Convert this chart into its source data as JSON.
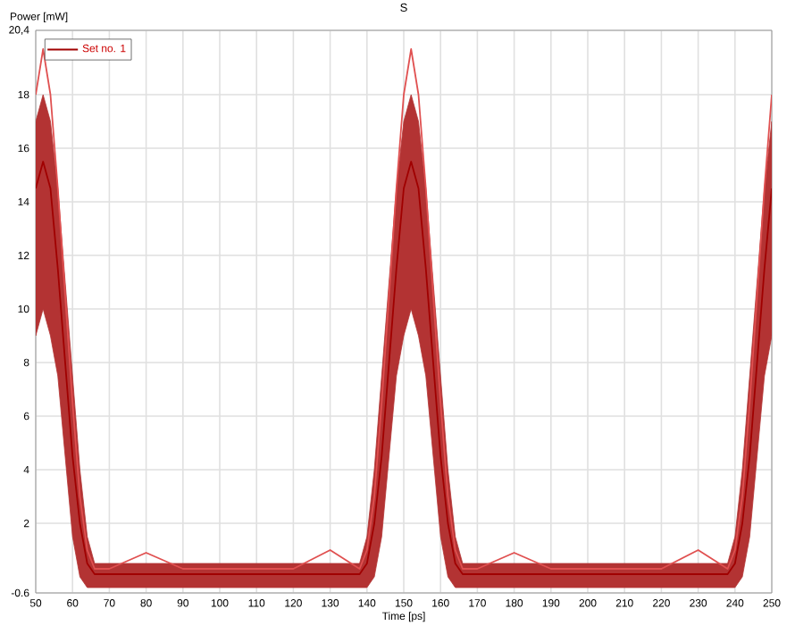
{
  "chart_data": {
    "type": "line",
    "title": "S",
    "xlabel": "Time [ps]",
    "ylabel": "Power [mW]",
    "x": [
      50,
      52,
      54,
      56,
      58,
      60,
      62,
      64,
      66,
      70,
      80,
      90,
      100,
      110,
      120,
      130,
      138,
      140,
      142,
      144,
      146,
      148,
      150,
      152,
      154,
      156,
      158,
      160,
      162,
      164,
      166,
      170,
      180,
      190,
      200,
      210,
      220,
      230,
      238,
      240,
      242,
      244,
      246,
      248,
      250
    ],
    "series": [
      {
        "name": "Set no. 1",
        "color": "#a00000",
        "values": [
          14.5,
          15.5,
          14.5,
          11.5,
          8,
          4.5,
          2,
          0.5,
          0.1,
          0.1,
          0.1,
          0.1,
          0.1,
          0.1,
          0.1,
          0.1,
          0.1,
          0.5,
          2,
          4.5,
          8,
          11.5,
          14.5,
          15.5,
          14.5,
          11.5,
          8,
          4.5,
          2,
          0.5,
          0.1,
          0.1,
          0.1,
          0.1,
          0.1,
          0.1,
          0.1,
          0.1,
          0.1,
          0.5,
          2,
          4.5,
          8,
          11.5,
          14.5
        ],
        "upper": [
          17,
          18,
          17,
          14.5,
          11,
          7.5,
          4,
          1.5,
          0.5,
          0.5,
          0.5,
          0.5,
          0.5,
          0.5,
          0.5,
          0.5,
          0.5,
          1.5,
          4,
          7.5,
          11,
          14.5,
          17,
          18,
          17,
          14.5,
          11,
          7.5,
          4,
          1.5,
          0.5,
          0.5,
          0.5,
          0.5,
          0.5,
          0.5,
          0.5,
          0.5,
          0.5,
          1.5,
          4,
          7.5,
          11,
          14.5,
          17
        ],
        "lower": [
          9,
          10,
          9,
          7.5,
          4.5,
          1.5,
          0,
          -0.4,
          -0.4,
          -0.4,
          -0.4,
          -0.4,
          -0.4,
          -0.4,
          -0.4,
          -0.4,
          -0.4,
          -0.4,
          0,
          1.5,
          4.5,
          7.5,
          9,
          10,
          9,
          7.5,
          4.5,
          1.5,
          0,
          -0.4,
          -0.4,
          -0.4,
          -0.4,
          -0.4,
          -0.4,
          -0.4,
          -0.4,
          -0.4,
          -0.4,
          -0.4,
          0,
          1.5,
          4.5,
          7.5,
          9
        ]
      },
      {
        "color": "#e05050",
        "values": [
          18,
          19.7,
          18,
          14.5,
          10.5,
          6.5,
          3,
          1,
          0.3,
          0.3,
          0.9,
          0.3,
          0.3,
          0.3,
          0.3,
          1.0,
          0.3,
          1,
          3,
          6.5,
          10.5,
          14.5,
          18,
          19.7,
          18,
          14.5,
          10.5,
          6.5,
          3,
          1,
          0.3,
          0.3,
          0.9,
          0.3,
          0.3,
          0.3,
          0.3,
          1.0,
          0.3,
          1,
          3,
          6.5,
          10.5,
          14.5,
          18
        ]
      }
    ],
    "xlim": [
      50,
      250
    ],
    "ylim": [
      -0.6,
      20.4
    ],
    "xticks": [
      50,
      60,
      70,
      80,
      90,
      100,
      110,
      120,
      130,
      140,
      150,
      160,
      170,
      180,
      190,
      200,
      210,
      220,
      230,
      240,
      250
    ],
    "yticks": [
      -0.6,
      2,
      4,
      6,
      8,
      10,
      12,
      14,
      16,
      18,
      {
        "value": 20.4,
        "label": "20,4"
      }
    ],
    "grid": true,
    "legend": "top left"
  }
}
